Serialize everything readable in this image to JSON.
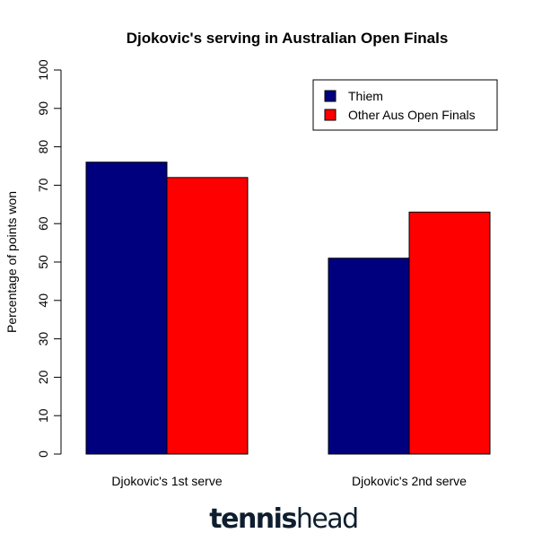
{
  "chart_data": {
    "type": "bar",
    "title": "Djokovic's serving in Australian Open Finals",
    "ylabel": "Percentage of points won",
    "xlabel": "",
    "ylim": [
      0,
      100
    ],
    "yticks": [
      0,
      10,
      20,
      30,
      40,
      50,
      60,
      70,
      80,
      90,
      100
    ],
    "categories": [
      "Djokovic's 1st serve",
      "Djokovic's 2nd serve"
    ],
    "series": [
      {
        "name": "Thiem",
        "color": "#00007f",
        "values": [
          76,
          51
        ]
      },
      {
        "name": "Other Aus Open Finals",
        "color": "#ff0000",
        "values": [
          72,
          63
        ]
      }
    ],
    "grid": false,
    "legend": "top-right"
  },
  "branding": {
    "part1": "tennis",
    "part2": "head",
    "color": "#0e1e2e"
  }
}
